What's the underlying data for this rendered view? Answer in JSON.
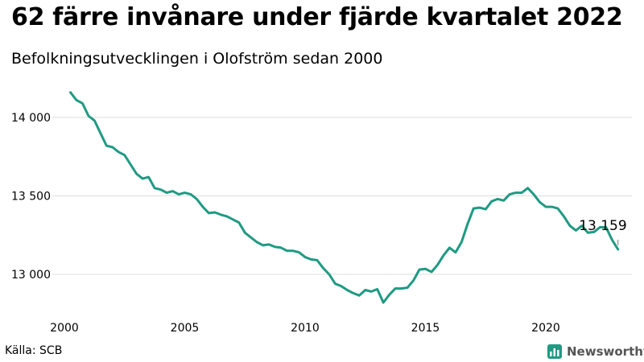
{
  "title": "62 färre invånare under fjärde kvartalet 2022",
  "subtitle": "Befolkningsutvecklingen i Olofström sedan 2000",
  "source": "Källa: SCB",
  "brand": {
    "name": "Newsworthy",
    "icon": "bar-chart-logo-icon"
  },
  "colors": {
    "line": "#1f9a83",
    "grid": "#dddddd",
    "brand_icon": "#1f9a83"
  },
  "chart_data": {
    "type": "line",
    "title": "62 färre invånare under fjärde kvartalet 2022",
    "subtitle": "Befolkningsutvecklingen i Olofström sedan 2000",
    "xlabel": "",
    "ylabel": "",
    "x_ticks": [
      2000,
      2005,
      2010,
      2015,
      2020
    ],
    "y_ticks": [
      13000,
      13500,
      14000
    ],
    "y_tick_labels": [
      "13 000",
      "13 500",
      "14 000"
    ],
    "ylim": [
      12800,
      14200
    ],
    "xlim": [
      2000,
      2023.5
    ],
    "grid": "horizontal",
    "end_label": "13 159",
    "series": [
      {
        "values": [
          [
            2000.25,
            14160
          ],
          [
            2000.5,
            14110
          ],
          [
            2000.75,
            14090
          ],
          [
            2001.0,
            14010
          ],
          [
            2001.25,
            13980
          ],
          [
            2001.5,
            13900
          ],
          [
            2001.75,
            13820
          ],
          [
            2002.0,
            13810
          ],
          [
            2002.25,
            13780
          ],
          [
            2002.5,
            13760
          ],
          [
            2002.75,
            13700
          ],
          [
            2003.0,
            13640
          ],
          [
            2003.25,
            13610
          ],
          [
            2003.5,
            13620
          ],
          [
            2003.75,
            13550
          ],
          [
            2004.0,
            13540
          ],
          [
            2004.25,
            13520
          ],
          [
            2004.5,
            13530
          ],
          [
            2004.75,
            13510
          ],
          [
            2005.0,
            13520
          ],
          [
            2005.25,
            13510
          ],
          [
            2005.5,
            13480
          ],
          [
            2005.75,
            13430
          ],
          [
            2006.0,
            13390
          ],
          [
            2006.25,
            13395
          ],
          [
            2006.5,
            13380
          ],
          [
            2006.75,
            13370
          ],
          [
            2007.0,
            13350
          ],
          [
            2007.25,
            13330
          ],
          [
            2007.5,
            13265
          ],
          [
            2007.75,
            13235
          ],
          [
            2008.0,
            13205
          ],
          [
            2008.25,
            13185
          ],
          [
            2008.5,
            13190
          ],
          [
            2008.75,
            13175
          ],
          [
            2009.0,
            13170
          ],
          [
            2009.25,
            13150
          ],
          [
            2009.5,
            13150
          ],
          [
            2009.75,
            13140
          ],
          [
            2010.0,
            13110
          ],
          [
            2010.25,
            13095
          ],
          [
            2010.5,
            13090
          ],
          [
            2010.75,
            13040
          ],
          [
            2011.0,
            13000
          ],
          [
            2011.25,
            12940
          ],
          [
            2011.5,
            12925
          ],
          [
            2011.75,
            12900
          ],
          [
            2012.0,
            12880
          ],
          [
            2012.25,
            12865
          ],
          [
            2012.5,
            12900
          ],
          [
            2012.75,
            12890
          ],
          [
            2013.0,
            12905
          ],
          [
            2013.25,
            12820
          ],
          [
            2013.5,
            12870
          ],
          [
            2013.75,
            12910
          ],
          [
            2014.0,
            12910
          ],
          [
            2014.25,
            12915
          ],
          [
            2014.5,
            12960
          ],
          [
            2014.75,
            13030
          ],
          [
            2015.0,
            13035
          ],
          [
            2015.25,
            13015
          ],
          [
            2015.5,
            13060
          ],
          [
            2015.75,
            13120
          ],
          [
            2016.0,
            13170
          ],
          [
            2016.25,
            13140
          ],
          [
            2016.5,
            13205
          ],
          [
            2016.75,
            13320
          ],
          [
            2017.0,
            13420
          ],
          [
            2017.25,
            13425
          ],
          [
            2017.5,
            13415
          ],
          [
            2017.75,
            13465
          ],
          [
            2018.0,
            13480
          ],
          [
            2018.25,
            13470
          ],
          [
            2018.5,
            13510
          ],
          [
            2018.75,
            13520
          ],
          [
            2019.0,
            13520
          ],
          [
            2019.25,
            13550
          ],
          [
            2019.5,
            13510
          ],
          [
            2019.75,
            13460
          ],
          [
            2020.0,
            13430
          ],
          [
            2020.25,
            13430
          ],
          [
            2020.5,
            13420
          ],
          [
            2020.75,
            13370
          ],
          [
            2021.0,
            13310
          ],
          [
            2021.25,
            13280
          ],
          [
            2021.5,
            13310
          ],
          [
            2021.75,
            13265
          ],
          [
            2022.0,
            13270
          ],
          [
            2022.25,
            13300
          ],
          [
            2022.5,
            13300
          ],
          [
            2022.75,
            13221
          ],
          [
            2023.0,
            13159
          ]
        ]
      }
    ]
  }
}
